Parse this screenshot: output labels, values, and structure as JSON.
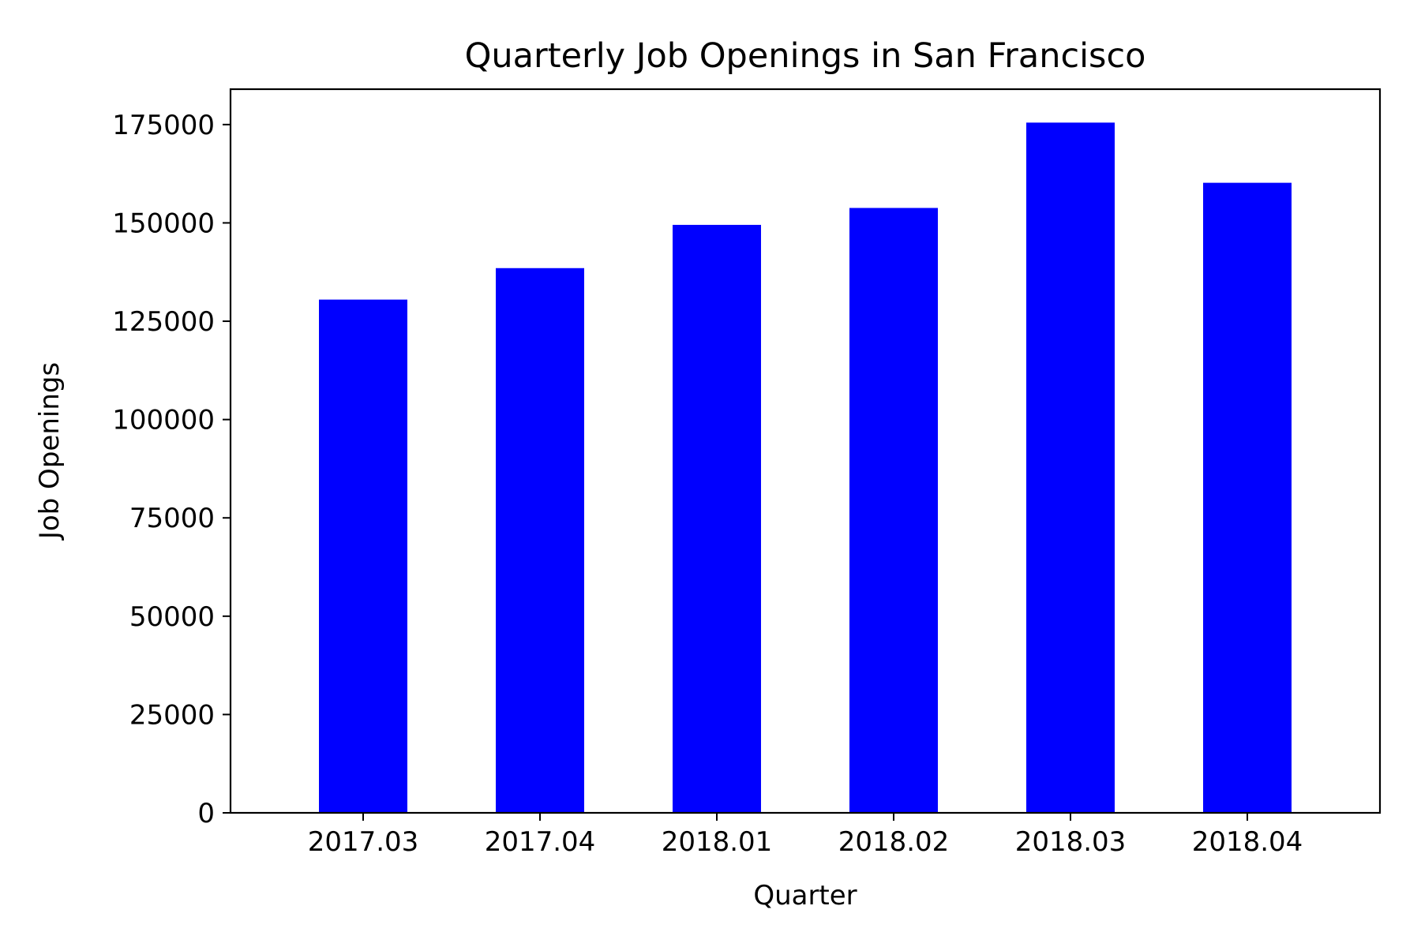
{
  "chart_data": {
    "type": "bar",
    "title": "Quarterly Job Openings in San Francisco",
    "xlabel": "Quarter",
    "ylabel": "Job Openings",
    "categories": [
      "2017.03",
      "2017.04",
      "2018.01",
      "2018.02",
      "2018.03",
      "2018.04"
    ],
    "values": [
      130500,
      138500,
      149500,
      153800,
      175500,
      160200
    ],
    "ylim": [
      0,
      184000
    ],
    "yticks": [
      0,
      25000,
      50000,
      75000,
      100000,
      125000,
      150000,
      175000
    ],
    "grid": false,
    "legend": "none",
    "bar_color": "#0000ff"
  }
}
